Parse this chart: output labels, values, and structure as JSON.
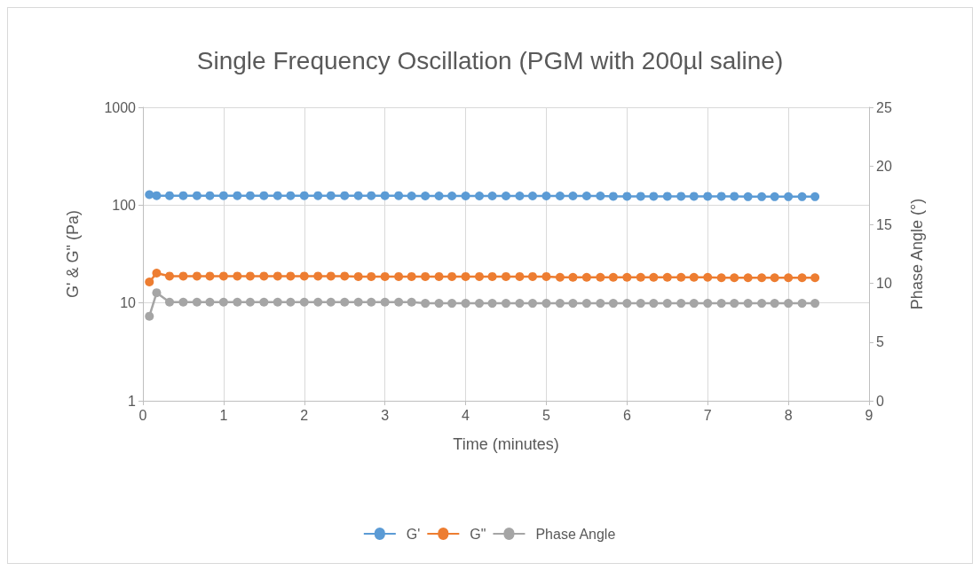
{
  "chart_data": {
    "type": "line",
    "title": "Single Frequency Oscillation (PGM with 200µl saline)",
    "xlabel": "Time (minutes)",
    "ylabel": "G' & G\" (Pa)",
    "y2label": "Phase Angle (°)",
    "x": [
      0.08,
      0.17,
      0.33,
      0.5,
      0.67,
      0.83,
      1,
      1.17,
      1.33,
      1.5,
      1.67,
      1.83,
      2,
      2.17,
      2.33,
      2.5,
      2.67,
      2.83,
      3,
      3.17,
      3.33,
      3.5,
      3.67,
      3.83,
      4,
      4.17,
      4.33,
      4.5,
      4.67,
      4.83,
      5,
      5.17,
      5.33,
      5.5,
      5.67,
      5.83,
      6,
      6.17,
      6.33,
      6.5,
      6.67,
      6.83,
      7,
      7.17,
      7.33,
      7.5,
      7.67,
      7.83,
      8,
      8.17,
      8.33
    ],
    "series": [
      {
        "name": "G'",
        "color": "#5b9bd5",
        "values": [
          128,
          125,
          125,
          125,
          125,
          125,
          125,
          125,
          125,
          125,
          125,
          125,
          125,
          125,
          125,
          125,
          125,
          125,
          125,
          125,
          124,
          124,
          124,
          124,
          124,
          124,
          124,
          124,
          124,
          124,
          124,
          124,
          124,
          124,
          124,
          123,
          123,
          123,
          123,
          123,
          123,
          123,
          123,
          123,
          123,
          122,
          122,
          122,
          122,
          122,
          122
        ]
      },
      {
        "name": "G\"",
        "color": "#ed7d31",
        "values": [
          16.4,
          20.2,
          18.8,
          18.8,
          18.8,
          18.8,
          18.8,
          18.8,
          18.8,
          18.8,
          18.8,
          18.8,
          18.8,
          18.8,
          18.8,
          18.8,
          18.6,
          18.6,
          18.6,
          18.6,
          18.6,
          18.6,
          18.6,
          18.6,
          18.6,
          18.6,
          18.6,
          18.6,
          18.6,
          18.6,
          18.6,
          18.3,
          18.3,
          18.3,
          18.3,
          18.3,
          18.3,
          18.3,
          18.3,
          18.3,
          18.3,
          18.3,
          18.3,
          18.1,
          18.1,
          18.1,
          18.1,
          18.1,
          18.1,
          18.1,
          18.1
        ]
      },
      {
        "name": "Phase Angle",
        "color": "#a5a5a5",
        "axis": "y2",
        "values": [
          7.2,
          9.2,
          8.4,
          8.4,
          8.4,
          8.4,
          8.4,
          8.4,
          8.4,
          8.4,
          8.4,
          8.4,
          8.4,
          8.4,
          8.4,
          8.4,
          8.4,
          8.4,
          8.4,
          8.4,
          8.4,
          8.3,
          8.3,
          8.3,
          8.3,
          8.3,
          8.3,
          8.3,
          8.3,
          8.3,
          8.3,
          8.3,
          8.3,
          8.3,
          8.3,
          8.3,
          8.3,
          8.3,
          8.3,
          8.3,
          8.3,
          8.3,
          8.3,
          8.3,
          8.3,
          8.3,
          8.3,
          8.3,
          8.3,
          8.3,
          8.3
        ]
      }
    ],
    "xlim": [
      0,
      9
    ],
    "xticks": [
      0,
      1,
      2,
      3,
      4,
      5,
      6,
      7,
      8,
      9
    ],
    "ylim": [
      1,
      1000
    ],
    "yticks": [
      1,
      10,
      100,
      1000
    ],
    "log": "y",
    "y2lim": [
      0,
      25
    ],
    "y2ticks": [
      0,
      5,
      10,
      15,
      20,
      25
    ],
    "grid": true,
    "legend": "bottom",
    "marker": "circle",
    "line_style": "solid"
  }
}
